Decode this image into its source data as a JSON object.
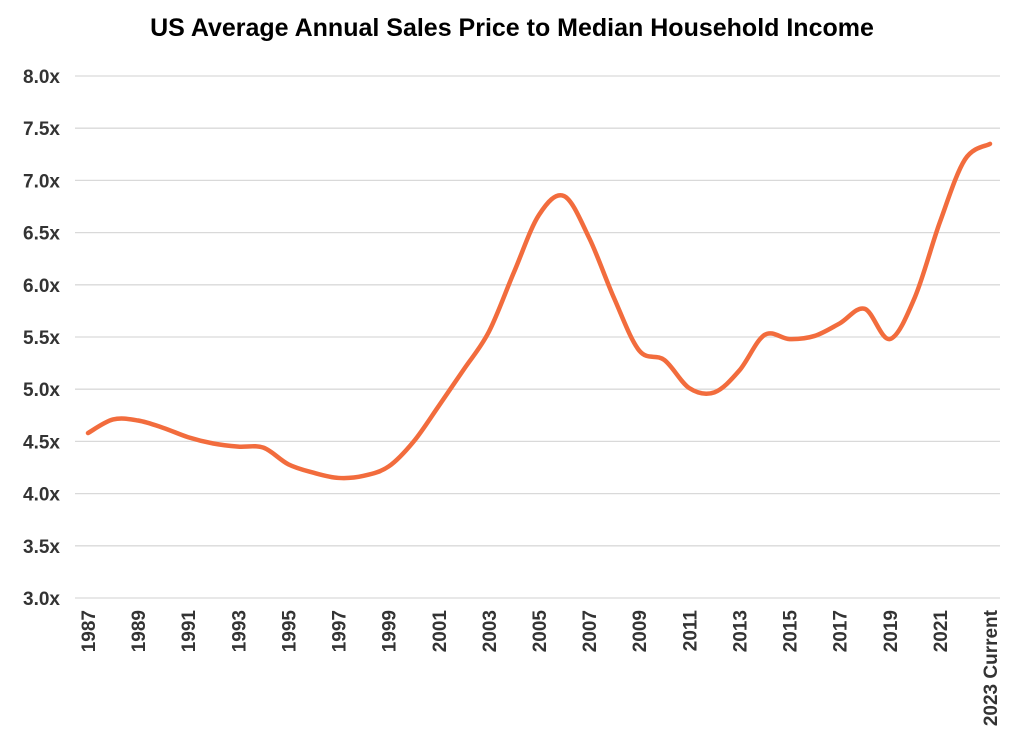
{
  "chart_data": {
    "type": "line",
    "title": "US Average Annual Sales Price to Median Household Income",
    "xlabel": "",
    "ylabel": "",
    "ylim": [
      3.0,
      8.0
    ],
    "y_ticks": [
      "3.0x",
      "3.5x",
      "4.0x",
      "4.5x",
      "5.0x",
      "5.5x",
      "6.0x",
      "6.5x",
      "7.0x",
      "7.5x",
      "8.0x"
    ],
    "grid": true,
    "legend": "none",
    "line_color": "#f26c3d",
    "categories": [
      "1987",
      "1988",
      "1989",
      "1990",
      "1991",
      "1992",
      "1993",
      "1994",
      "1995",
      "1996",
      "1997",
      "1998",
      "1999",
      "2000",
      "2001",
      "2002",
      "2003",
      "2004",
      "2005",
      "2006",
      "2007",
      "2008",
      "2009",
      "2010",
      "2011",
      "2012",
      "2013",
      "2014",
      "2015",
      "2016",
      "2017",
      "2018",
      "2019",
      "2020",
      "2021",
      "2022",
      "2023 Current"
    ],
    "x_tick_labels": [
      "1987",
      "1989",
      "1991",
      "1993",
      "1995",
      "1997",
      "1999",
      "2001",
      "2003",
      "2005",
      "2007",
      "2009",
      "2011",
      "2013",
      "2015",
      "2017",
      "2019",
      "2021",
      "2023 Current"
    ],
    "values": [
      4.58,
      4.71,
      4.7,
      4.63,
      4.54,
      4.48,
      4.45,
      4.44,
      4.28,
      4.2,
      4.15,
      4.17,
      4.26,
      4.5,
      4.84,
      5.19,
      5.55,
      6.12,
      6.67,
      6.85,
      6.45,
      5.87,
      5.37,
      5.28,
      5.01,
      4.97,
      5.18,
      5.52,
      5.48,
      5.51,
      5.63,
      5.77,
      5.48,
      5.88,
      6.6,
      7.2,
      7.35
    ]
  }
}
